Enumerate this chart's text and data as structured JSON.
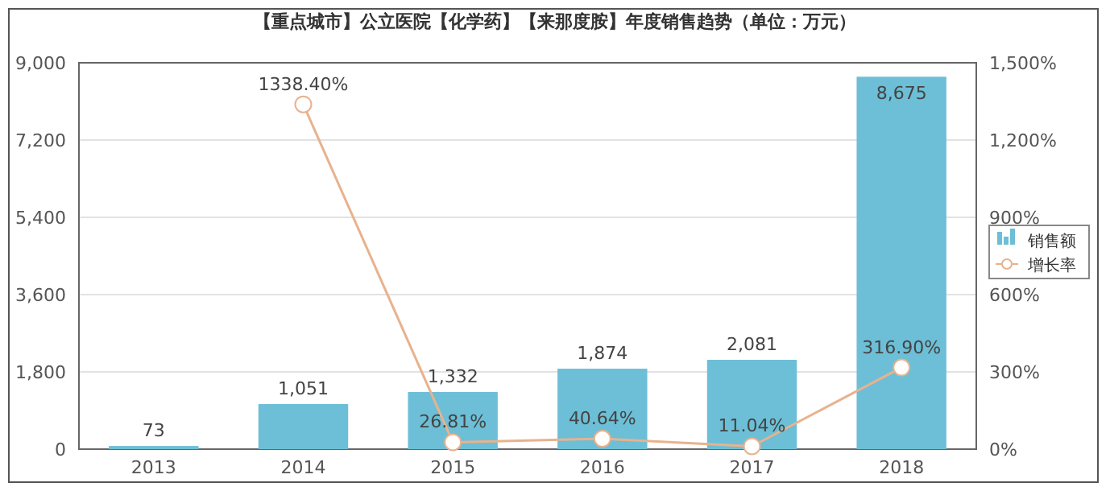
{
  "chart_data": {
    "type": "bar",
    "title": "【重点城市】公立医院【化学药】【来那度胺】年度销售趋势（单位：万元）",
    "categories": [
      "2013",
      "2014",
      "2015",
      "2016",
      "2017",
      "2018"
    ],
    "series": [
      {
        "name": "销售额",
        "color": "#6cbfd6",
        "values": [
          73,
          1051,
          1332,
          1874,
          2081,
          8675
        ],
        "value_labels": [
          "73",
          "1,051",
          "1,332",
          "1,874",
          "2,081",
          "8,675"
        ]
      },
      {
        "name": "增长率",
        "type": "line",
        "axis": "y2",
        "color": "#e8b28e",
        "marker": "circle",
        "values": [
          null,
          1338.4,
          26.81,
          40.64,
          11.04,
          316.9
        ],
        "value_labels": [
          null,
          "1338.40%",
          "26.81%",
          "40.64%",
          "11.04%",
          "316.90%"
        ]
      }
    ],
    "ylim": [
      0,
      9000
    ],
    "yticks": [
      0,
      {
        "value": 1800,
        "label": "1,800"
      },
      {
        "value": 3600,
        "label": "3,600"
      },
      {
        "value": 5400,
        "label": "5,400"
      },
      {
        "value": 7200,
        "label": "7,200"
      },
      {
        "value": 9000,
        "label": "9,000"
      }
    ],
    "y2lim": [
      0,
      1500
    ],
    "y2ticks": [
      {
        "value": 0,
        "label": "0%"
      },
      {
        "value": 300,
        "label": "300%"
      },
      {
        "value": 600,
        "label": "600%"
      },
      {
        "value": 900,
        "label": "900%"
      },
      {
        "value": 1200,
        "label": "1,200%"
      },
      {
        "value": 1500,
        "label": "1,500%"
      }
    ],
    "grid": "y",
    "legend": "right"
  }
}
